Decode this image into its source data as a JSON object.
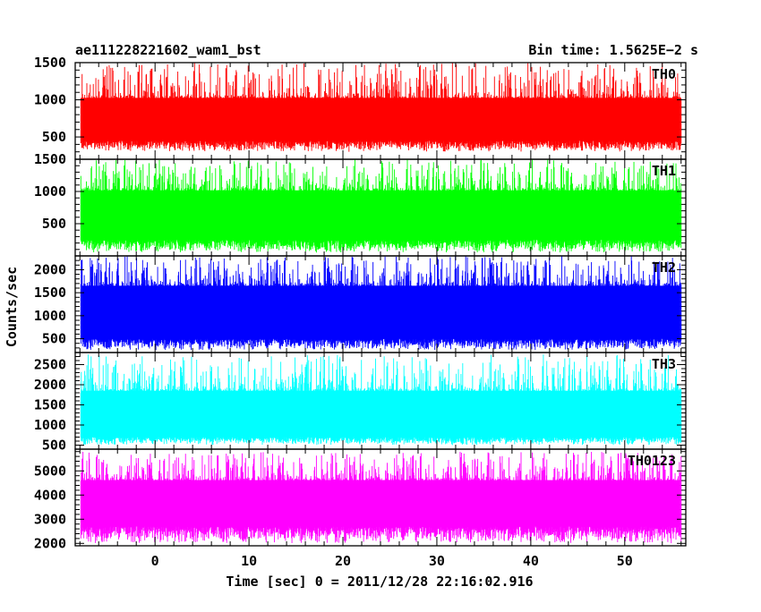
{
  "header": {
    "left_title": "ae111228221602_wam1_bst",
    "right_title": "Bin time: 1.5625E−2 s"
  },
  "chart_data": {
    "type": "line",
    "xlabel": "Time [sec] 0 = 2011/12/28 22:16:02.916",
    "ylabel": "Counts/sec",
    "xlim": [
      -8.5,
      56.5
    ],
    "x_ticks": [
      0,
      10,
      20,
      30,
      40,
      50
    ],
    "x_tick_labels": [
      "0",
      "10",
      "20",
      "30",
      "40",
      "50"
    ],
    "data_x_range": [
      -7.9,
      56.0
    ],
    "grid": false,
    "legend": "none",
    "panels": [
      {
        "name": "TH0",
        "color": "#ff0000",
        "ylim": [
          200,
          1500
        ],
        "y_ticks": [
          500,
          1000,
          1500
        ],
        "y_tick_labels": [
          "500",
          "1000",
          "1500"
        ],
        "band": {
          "min": 300,
          "typical_low": 450,
          "typical_high": 1050,
          "max": 1500
        }
      },
      {
        "name": "TH1",
        "color": "#00ff00",
        "ylim": [
          0,
          1500
        ],
        "y_ticks": [
          500,
          1000,
          1500
        ],
        "y_tick_labels": [
          "500",
          "1000",
          "1500"
        ],
        "band": {
          "min": 50,
          "typical_low": 250,
          "typical_high": 1050,
          "max": 1500
        }
      },
      {
        "name": "TH2",
        "color": "#0000ff",
        "ylim": [
          200,
          2300
        ],
        "y_ticks": [
          500,
          1000,
          1500,
          2000
        ],
        "y_tick_labels": [
          "500",
          "1000",
          "1500",
          "2000"
        ],
        "band": {
          "min": 250,
          "typical_low": 500,
          "typical_high": 1700,
          "max": 2300
        }
      },
      {
        "name": "TH3",
        "color": "#00ffff",
        "ylim": [
          400,
          2800
        ],
        "y_ticks": [
          500,
          1000,
          1500,
          2000,
          2500
        ],
        "y_tick_labels": [
          "500",
          "1000",
          "1500",
          "2000",
          "2500"
        ],
        "band": {
          "min": 500,
          "typical_low": 700,
          "typical_high": 1900,
          "max": 2750
        }
      },
      {
        "name": "TH0123",
        "color": "#ff00ff",
        "ylim": [
          1900,
          5900
        ],
        "y_ticks": [
          2000,
          3000,
          4000,
          5000
        ],
        "y_tick_labels": [
          "2000",
          "3000",
          "4000",
          "5000"
        ],
        "band": {
          "min": 2000,
          "typical_low": 2700,
          "typical_high": 4700,
          "max": 5800
        }
      }
    ]
  }
}
